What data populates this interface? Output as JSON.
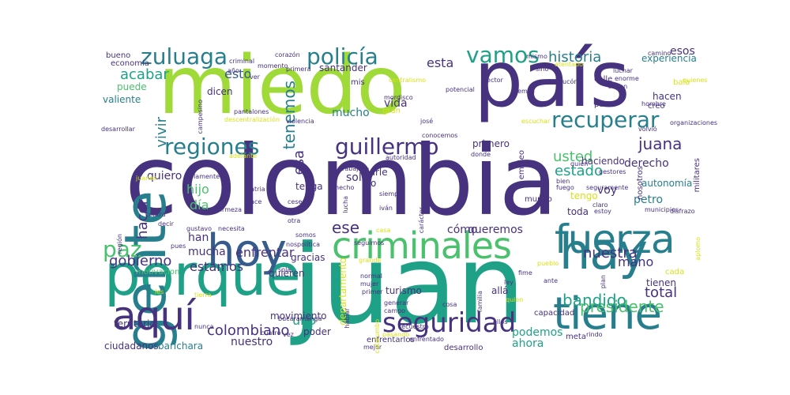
{
  "palette": {
    "purple": "#46327e",
    "blue": "#365c8d",
    "teal": "#277f8e",
    "green": "#1fa187",
    "lime": "#4ac16d",
    "yellow": "#a0da39",
    "gold": "#d8e219"
  },
  "words": [
    {
      "t": "colombia",
      "c": "purple",
      "big": true
    },
    {
      "t": "miedo",
      "c": "yellow",
      "big": true
    },
    {
      "t": "juan",
      "c": "green",
      "big": true
    },
    {
      "t": "país",
      "c": "purple",
      "big": true
    },
    {
      "t": "porque",
      "c": "green",
      "big": true
    },
    {
      "t": "hoy",
      "c": "blue",
      "big": true
    },
    {
      "t": "criminales",
      "c": "lime",
      "big": true
    },
    {
      "t": "tiene",
      "c": "teal",
      "big": true
    },
    {
      "t": "gente",
      "c": "teal",
      "big": true
    },
    {
      "t": "hay",
      "c": "teal",
      "big": true
    },
    {
      "t": "fuerza",
      "c": "teal",
      "big": true
    },
    {
      "t": "aquí",
      "c": "purple",
      "big": true
    },
    {
      "t": "seguridad",
      "c": "purple"
    },
    {
      "t": "zuluaga",
      "c": "teal"
    },
    {
      "t": "policía",
      "c": "teal"
    },
    {
      "t": "vamos",
      "c": "green"
    },
    {
      "t": "regiones",
      "c": "teal"
    },
    {
      "t": "guillermo",
      "c": "purple"
    },
    {
      "t": "recuperar",
      "c": "teal"
    },
    {
      "t": "paz",
      "c": "lime"
    },
    {
      "t": "colombiano",
      "c": "purple"
    },
    {
      "t": "presidente",
      "c": "lime"
    },
    {
      "t": "bandido",
      "c": "green"
    },
    {
      "t": "historia",
      "c": "teal"
    },
    {
      "t": "juana",
      "c": "purple"
    },
    {
      "t": "usted",
      "c": "lime"
    },
    {
      "t": "estado",
      "c": "green"
    },
    {
      "t": "total",
      "c": "purple"
    },
    {
      "t": "nuestra",
      "c": "purple"
    },
    {
      "t": "enfrentar",
      "c": "purple"
    },
    {
      "t": "gobierno",
      "c": "purple"
    },
    {
      "t": "estamos",
      "c": "purple"
    },
    {
      "t": "acabar",
      "c": "green"
    },
    {
      "t": "tenemos",
      "c": "teal"
    },
    {
      "t": "esto",
      "c": "blue"
    },
    {
      "t": "esta",
      "c": "purple"
    },
    {
      "t": "esos",
      "c": "purple"
    },
    {
      "t": "hacer",
      "c": "purple"
    },
    {
      "t": "vivir",
      "c": "teal"
    },
    {
      "t": "esa",
      "c": "purple"
    },
    {
      "t": "hijo",
      "c": "lime"
    },
    {
      "t": "día",
      "c": "lime"
    },
    {
      "t": "ese",
      "c": "purple"
    },
    {
      "t": "cómo",
      "c": "purple"
    },
    {
      "t": "quiero",
      "c": "purple"
    },
    {
      "t": "mucha",
      "c": "purple"
    },
    {
      "t": "han",
      "c": "purple"
    },
    {
      "t": "mano",
      "c": "purple"
    },
    {
      "t": "uno",
      "c": "green"
    },
    {
      "t": "nuestro",
      "c": "purple"
    },
    {
      "t": "ahora",
      "c": "green"
    },
    {
      "t": "podemos",
      "c": "green"
    },
    {
      "t": "puede",
      "c": "lime"
    },
    {
      "t": "valiente",
      "c": "teal"
    },
    {
      "t": "mucho",
      "c": "teal"
    },
    {
      "t": "vida",
      "c": "purple"
    },
    {
      "t": "solo",
      "c": "purple"
    },
    {
      "t": "derecho",
      "c": "purple"
    },
    {
      "t": "voy",
      "c": "purple"
    },
    {
      "t": "petro",
      "c": "teal"
    },
    {
      "t": "tenga",
      "c": "purple"
    },
    {
      "t": "tengo",
      "c": "gold"
    },
    {
      "t": "toda",
      "c": "purple"
    },
    {
      "t": "quieren",
      "c": "purple"
    },
    {
      "t": "queremos",
      "c": "purple"
    },
    {
      "t": "gracias",
      "c": "purple"
    },
    {
      "t": "turismo",
      "c": "purple"
    },
    {
      "t": "allá",
      "c": "purple"
    },
    {
      "t": "tienen",
      "c": "purple"
    },
    {
      "t": "cada",
      "c": "gold"
    },
    {
      "t": "barichara",
      "c": "teal"
    },
    {
      "t": "ciudadanos",
      "c": "purple"
    },
    {
      "t": "territorio",
      "c": "purple"
    },
    {
      "t": "movimiento",
      "c": "purple"
    },
    {
      "t": "poder",
      "c": "purple"
    },
    {
      "t": "departamento",
      "c": "gold"
    },
    {
      "t": "motivacion",
      "c": "lime"
    },
    {
      "t": "experiencia",
      "c": "teal"
    },
    {
      "t": "capacidad",
      "c": "purple"
    },
    {
      "t": "meta",
      "c": "purple"
    },
    {
      "t": "hacen",
      "c": "purple"
    },
    {
      "t": "autonomía",
      "c": "teal"
    },
    {
      "t": "haciendo",
      "c": "purple"
    },
    {
      "t": "primero",
      "c": "purple"
    },
    {
      "t": "dio",
      "c": "purple"
    },
    {
      "t": "darle",
      "c": "purple"
    },
    {
      "t": "dicen",
      "c": "purple"
    },
    {
      "t": "economía",
      "c": "purple"
    },
    {
      "t": "bueno",
      "c": "purple"
    },
    {
      "t": "calle",
      "c": "purple"
    },
    {
      "t": "creo",
      "c": "purple"
    },
    {
      "t": "parte",
      "c": "purple"
    },
    {
      "t": "bala",
      "c": "gold"
    },
    {
      "t": "empleo",
      "c": "purple"
    },
    {
      "t": "nosotros",
      "c": "purple"
    },
    {
      "t": "militares",
      "c": "purple"
    },
    {
      "t": "mundo",
      "c": "purple"
    },
    {
      "t": "santander",
      "c": "purple"
    },
    {
      "t": "enfrentarlos",
      "c": "purple"
    },
    {
      "t": "desarrollo",
      "c": "purple"
    },
    {
      "t": "gran",
      "c": "gold"
    },
    {
      "t": "mis",
      "c": "purple"
    },
    {
      "t": "corazón",
      "c": "purple"
    },
    {
      "t": "primera",
      "c": "purple"
    },
    {
      "t": "centralismo",
      "c": "gold"
    },
    {
      "t": "sino",
      "c": "purple"
    },
    {
      "t": "pueblo",
      "c": "gold"
    },
    {
      "t": "ellos",
      "c": "purple"
    },
    {
      "t": "ley",
      "c": "purple"
    },
    {
      "t": "fime",
      "c": "purple"
    },
    {
      "t": "ante",
      "c": "purple"
    },
    {
      "t": "plan",
      "c": "purple"
    },
    {
      "t": "primer",
      "c": "purple"
    },
    {
      "t": "mujer",
      "c": "purple"
    },
    {
      "t": "normal",
      "c": "purple"
    },
    {
      "t": "grande",
      "c": "gold"
    },
    {
      "t": "cosa",
      "c": "purple"
    },
    {
      "t": "secuestro",
      "c": "purple"
    },
    {
      "t": "enfrentado",
      "c": "purple"
    },
    {
      "t": "mejor",
      "c": "purple"
    },
    {
      "t": "casa",
      "c": "gold"
    },
    {
      "t": "seguimos",
      "c": "purple"
    },
    {
      "t": "política",
      "c": "purple"
    },
    {
      "t": "iván",
      "c": "purple"
    },
    {
      "t": "siempre",
      "c": "purple"
    },
    {
      "t": "hecho",
      "c": "purple"
    },
    {
      "t": "trabajar",
      "c": "purple"
    },
    {
      "t": "autoridad",
      "c": "purple"
    },
    {
      "t": "conocemos",
      "c": "purple"
    },
    {
      "t": "donde",
      "c": "purple"
    },
    {
      "t": "fuego",
      "c": "purple"
    },
    {
      "t": "bien",
      "c": "purple"
    },
    {
      "t": "quién",
      "c": "purple"
    },
    {
      "t": "claro",
      "c": "purple"
    },
    {
      "t": "estoy",
      "c": "purple"
    },
    {
      "t": "seguramente",
      "c": "purple"
    },
    {
      "t": "gestores",
      "c": "purple"
    },
    {
      "t": "adelante",
      "c": "gold"
    },
    {
      "t": "solamente",
      "c": "purple"
    },
    {
      "t": "patria",
      "c": "purple"
    },
    {
      "t": "cese",
      "c": "purple"
    },
    {
      "t": "otra",
      "c": "purple"
    },
    {
      "t": "hace",
      "c": "purple"
    },
    {
      "t": "firmeza",
      "c": "purple"
    },
    {
      "t": "contra",
      "c": "purple"
    },
    {
      "t": "decir",
      "c": "purple"
    },
    {
      "t": "gustavo",
      "c": "purple"
    },
    {
      "t": "necesita",
      "c": "purple"
    },
    {
      "t": "pues",
      "c": "purple"
    },
    {
      "t": "nos",
      "c": "purple"
    },
    {
      "t": "somos",
      "c": "purple"
    },
    {
      "t": "sola",
      "c": "purple"
    },
    {
      "t": "les",
      "c": "gold"
    },
    {
      "t": "tierra",
      "c": "gold"
    },
    {
      "t": "nunca",
      "c": "purple"
    },
    {
      "t": "cuatro",
      "c": "purple"
    },
    {
      "t": "vez",
      "c": "purple"
    },
    {
      "t": "bucaramanga",
      "c": "purple"
    },
    {
      "t": "hablar",
      "c": "purple"
    },
    {
      "t": "región",
      "c": "purple"
    },
    {
      "t": "juanes",
      "c": "gold"
    },
    {
      "t": "pantalones",
      "c": "purple"
    },
    {
      "t": "descentralización",
      "c": "gold"
    },
    {
      "t": "violencia",
      "c": "purple"
    },
    {
      "t": "desarrollar",
      "c": "purple"
    },
    {
      "t": "campesino",
      "c": "purple"
    },
    {
      "t": "año",
      "c": "purple"
    },
    {
      "t": "criminal",
      "c": "purple"
    },
    {
      "t": "momento",
      "c": "purple"
    },
    {
      "t": "ver",
      "c": "purple"
    },
    {
      "t": "mordisco",
      "c": "purple"
    },
    {
      "t": "josé",
      "c": "purple"
    },
    {
      "t": "potencial",
      "c": "purple"
    },
    {
      "t": "hemos",
      "c": "purple"
    },
    {
      "t": "mismo",
      "c": "purple"
    },
    {
      "t": "atentado",
      "c": "gold"
    },
    {
      "t": "sector",
      "c": "purple"
    },
    {
      "t": "bravucón",
      "c": "purple"
    },
    {
      "t": "enorme",
      "c": "purple"
    },
    {
      "t": "luchar",
      "c": "purple"
    },
    {
      "t": "saben",
      "c": "purple"
    },
    {
      "t": "hombre",
      "c": "purple"
    },
    {
      "t": "quienes",
      "c": "gold"
    },
    {
      "t": "camino",
      "c": "purple"
    },
    {
      "t": "escuchar",
      "c": "gold"
    },
    {
      "t": "volvió",
      "c": "purple"
    },
    {
      "t": "organizaciones",
      "c": "purple"
    },
    {
      "t": "aplomo",
      "c": "gold"
    },
    {
      "t": "disfrazo",
      "c": "purple"
    },
    {
      "t": "municipios",
      "c": "purple"
    },
    {
      "t": "familia",
      "c": "purple"
    },
    {
      "t": "carácter",
      "c": "purple"
    },
    {
      "t": "catatumbo",
      "c": "gold"
    },
    {
      "t": "lucha",
      "c": "purple"
    },
    {
      "t": "campo",
      "c": "purple"
    },
    {
      "t": "generar",
      "c": "purple"
    },
    {
      "t": "pasando",
      "c": "gold"
    },
    {
      "t": "quien",
      "c": "gold"
    },
    {
      "t": "rindo",
      "c": "purple"
    }
  ]
}
